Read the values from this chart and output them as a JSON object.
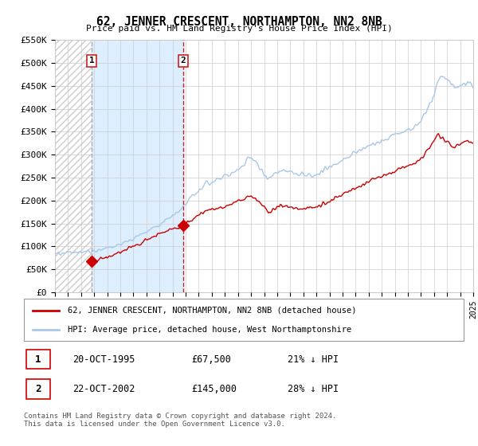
{
  "title": "62, JENNER CRESCENT, NORTHAMPTON, NN2 8NB",
  "subtitle": "Price paid vs. HM Land Registry's House Price Index (HPI)",
  "ylim": [
    0,
    550000
  ],
  "yticks": [
    0,
    50000,
    100000,
    150000,
    200000,
    250000,
    300000,
    350000,
    400000,
    450000,
    500000,
    550000
  ],
  "ytick_labels": [
    "£0",
    "£50K",
    "£100K",
    "£150K",
    "£200K",
    "£250K",
    "£300K",
    "£350K",
    "£400K",
    "£450K",
    "£500K",
    "£550K"
  ],
  "sale1_date": 1995.8,
  "sale1_price": 67500,
  "sale1_label": "1",
  "sale2_date": 2002.8,
  "sale2_price": 145000,
  "sale2_label": "2",
  "hpi_color": "#a8c8e8",
  "sold_color": "#cc0000",
  "vline1_color": "#aaaaaa",
  "vline2_color": "#cc2222",
  "shade_color": "#ddeeff",
  "grid_color": "#cccccc",
  "bg_color": "#ffffff",
  "legend_line1": "62, JENNER CRESCENT, NORTHAMPTON, NN2 8NB (detached house)",
  "legend_line2": "HPI: Average price, detached house, West Northamptonshire",
  "table_row1": [
    "1",
    "20-OCT-1995",
    "£67,500",
    "21% ↓ HPI"
  ],
  "table_row2": [
    "2",
    "22-OCT-2002",
    "£145,000",
    "28% ↓ HPI"
  ],
  "footnote": "Contains HM Land Registry data © Crown copyright and database right 2024.\nThis data is licensed under the Open Government Licence v3.0.",
  "xmin": 1993,
  "xmax": 2025
}
